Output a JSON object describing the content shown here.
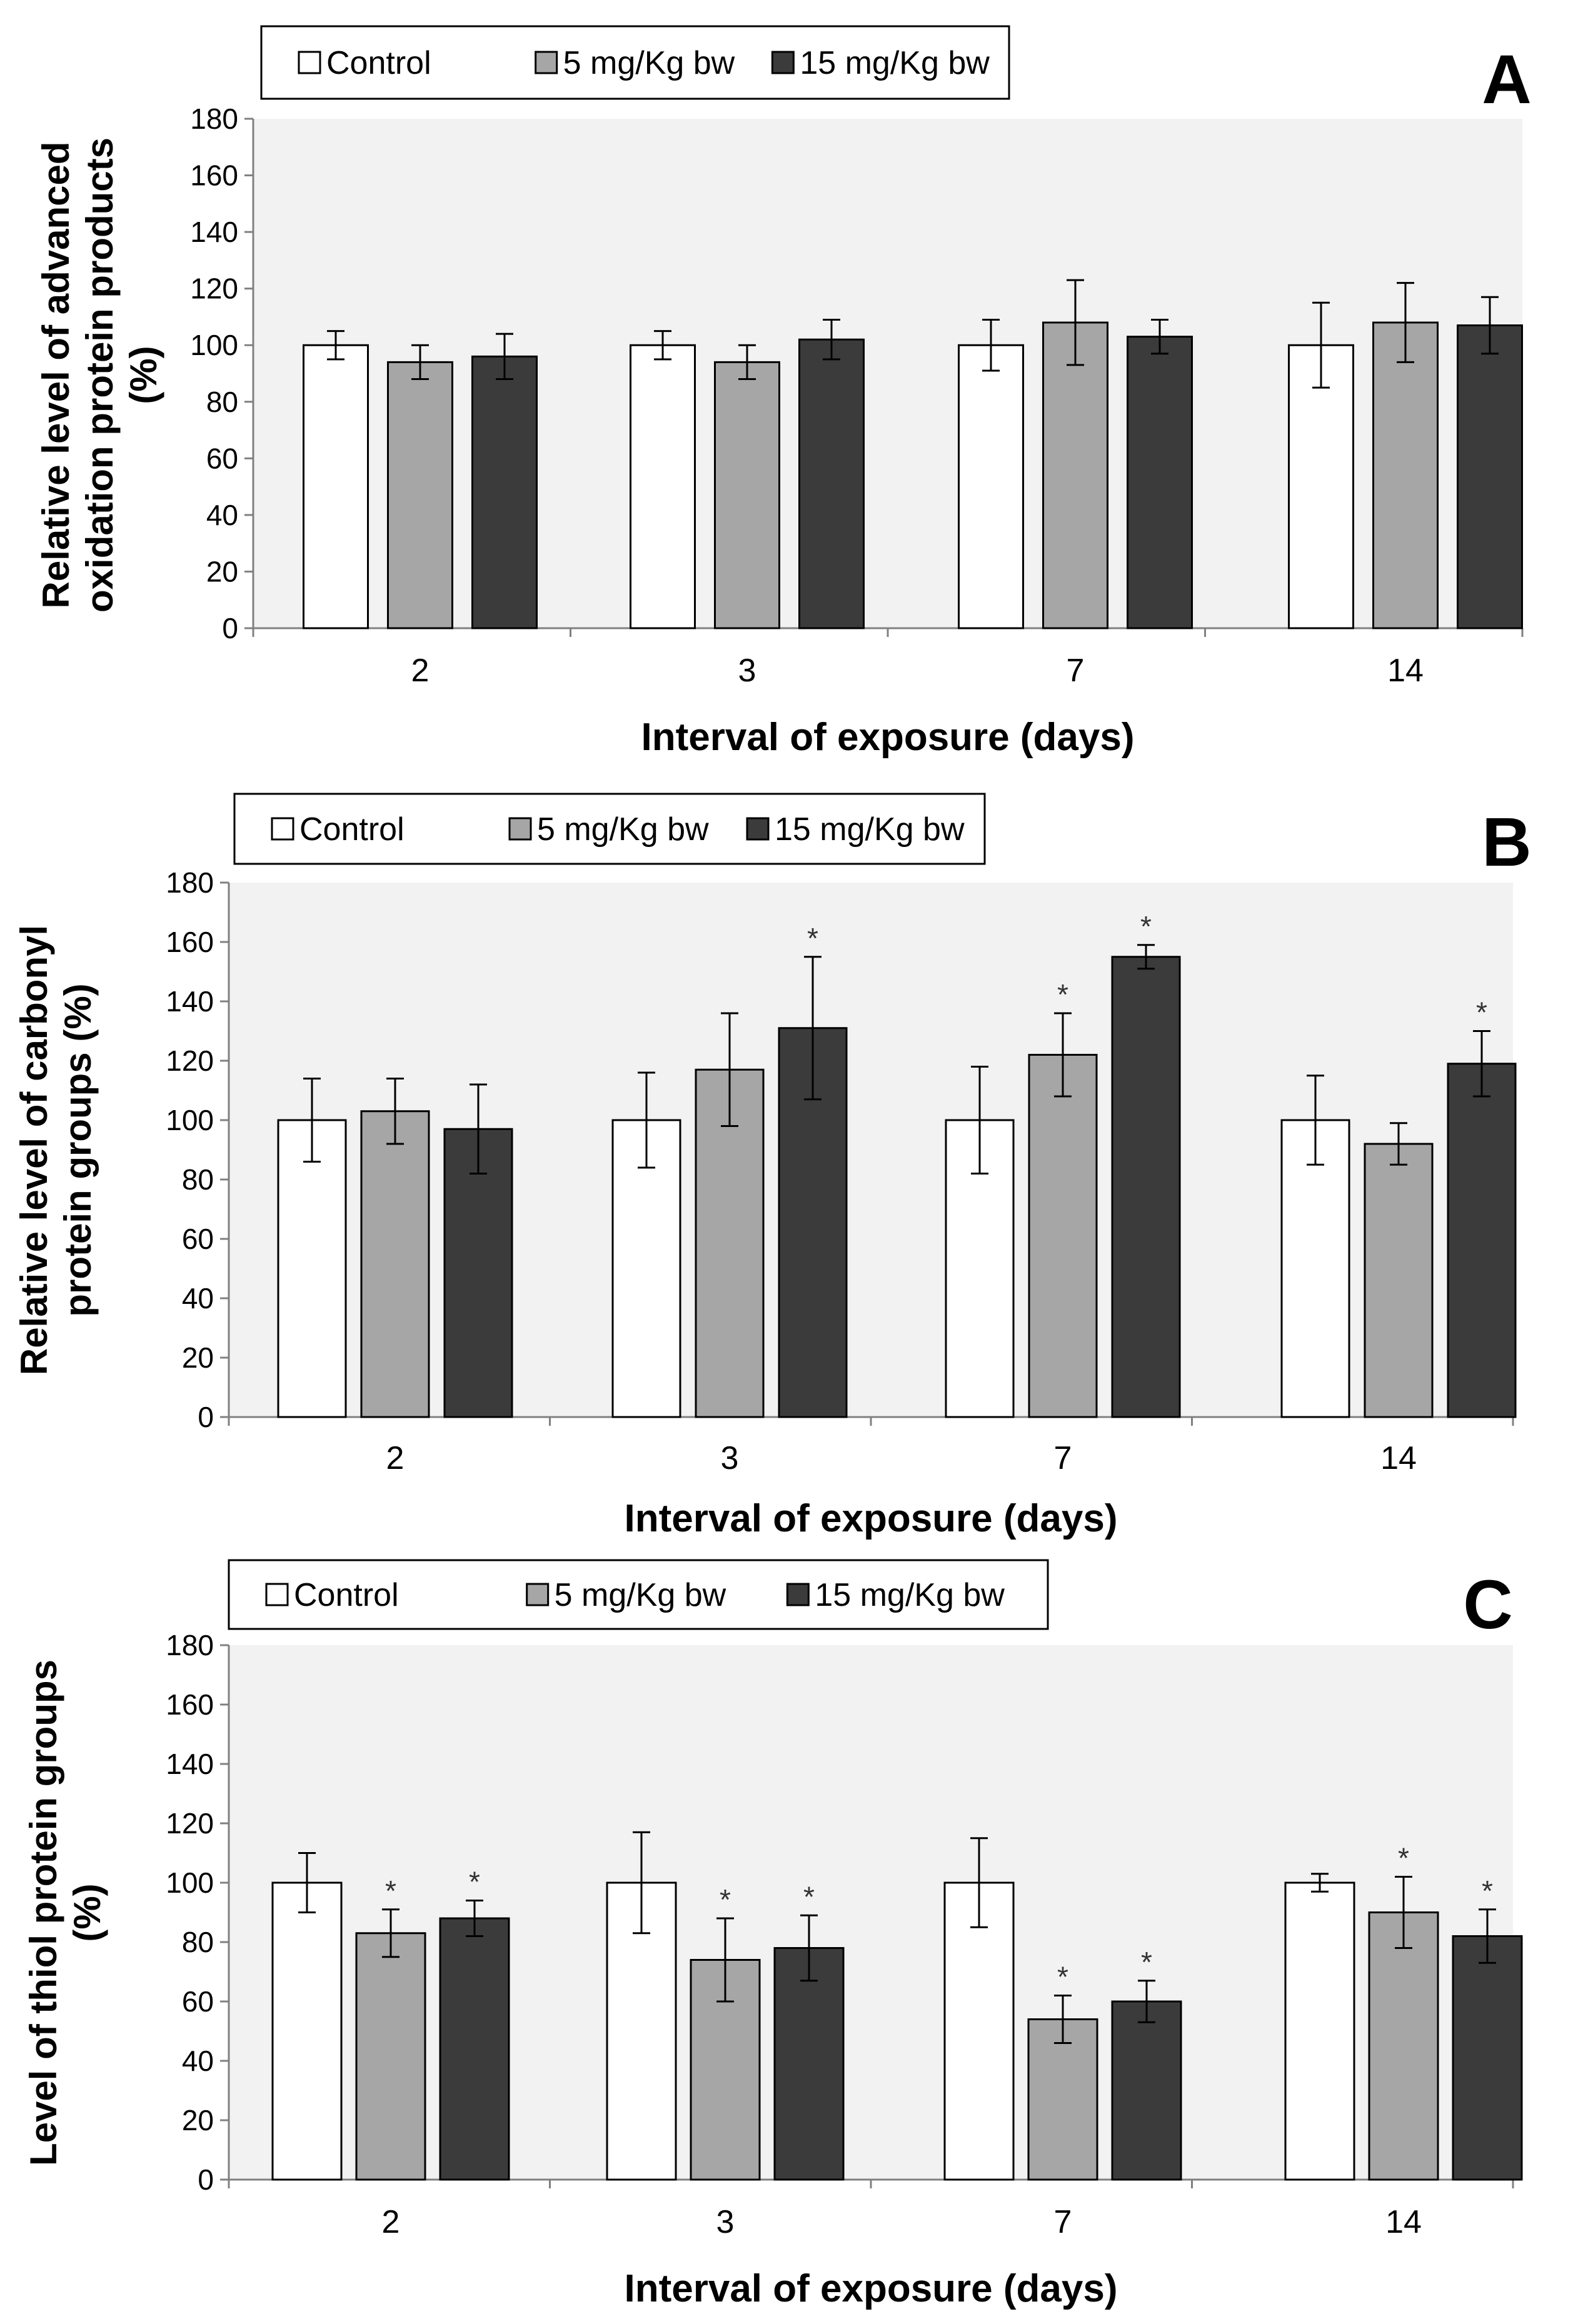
{
  "colors": {
    "Control": "#ffffff",
    "5 mg/Kg bw": "#a6a6a6",
    "15 mg/Kg bw": "#3b3b3b",
    "plot_bg": "#f2f2f2"
  },
  "chart_data": [
    {
      "type": "bar",
      "panel_label": "A",
      "legend": [
        "Control",
        "5 mg/Kg bw",
        "15 mg/Kg bw"
      ],
      "categories": [
        "2",
        "3",
        "7",
        "14"
      ],
      "xlabel": "Interval of exposure (days)",
      "ylabel_lines": [
        "Relative level of advanced",
        "oxidation protein products",
        "(%)"
      ],
      "ylim": [
        0,
        180
      ],
      "yticks": [
        0,
        20,
        40,
        60,
        80,
        100,
        120,
        140,
        160,
        180
      ],
      "series": [
        {
          "name": "Control",
          "values": [
            100,
            100,
            100,
            100
          ],
          "errors": [
            5,
            5,
            9,
            15
          ],
          "significant": [
            false,
            false,
            false,
            false
          ]
        },
        {
          "name": "5 mg/Kg bw",
          "values": [
            94,
            94,
            108,
            108
          ],
          "errors": [
            6,
            6,
            15,
            14
          ],
          "significant": [
            false,
            false,
            false,
            false
          ]
        },
        {
          "name": "15 mg/Kg bw",
          "values": [
            96,
            102,
            103,
            107
          ],
          "errors": [
            8,
            7,
            6,
            10
          ],
          "significant": [
            false,
            false,
            false,
            false
          ]
        }
      ]
    },
    {
      "type": "bar",
      "panel_label": "B",
      "legend": [
        "Control",
        "5 mg/Kg bw",
        "15 mg/Kg bw"
      ],
      "categories": [
        "2",
        "3",
        "7",
        "14"
      ],
      "xlabel": "Interval of exposure (days)",
      "ylabel_lines": [
        "Relative level of carbonyl",
        "protein groups (%)"
      ],
      "ylim": [
        0,
        180
      ],
      "yticks": [
        0,
        20,
        40,
        60,
        80,
        100,
        120,
        140,
        160,
        180
      ],
      "series": [
        {
          "name": "Control",
          "values": [
            100,
            100,
            100,
            100
          ],
          "errors": [
            14,
            16,
            18,
            15
          ],
          "significant": [
            false,
            false,
            false,
            false
          ]
        },
        {
          "name": "5 mg/Kg bw",
          "values": [
            103,
            117,
            122,
            92
          ],
          "errors": [
            11,
            19,
            14,
            7
          ],
          "significant": [
            false,
            false,
            true,
            false
          ]
        },
        {
          "name": "15 mg/Kg bw",
          "values": [
            97,
            131,
            155,
            119
          ],
          "errors": [
            15,
            24,
            4,
            11
          ],
          "significant": [
            false,
            true,
            true,
            true
          ]
        }
      ]
    },
    {
      "type": "bar",
      "panel_label": "C",
      "legend": [
        "Control",
        "5 mg/Kg bw",
        "15 mg/Kg bw"
      ],
      "categories": [
        "2",
        "3",
        "7",
        "14"
      ],
      "xlabel": "Interval of exposure (days)",
      "ylabel_lines": [
        "Level of thiol protein groups",
        "(%)"
      ],
      "ylim": [
        0,
        180
      ],
      "yticks": [
        0,
        20,
        40,
        60,
        80,
        100,
        120,
        140,
        160,
        180
      ],
      "series": [
        {
          "name": "Control",
          "values": [
            100,
            100,
            100,
            100
          ],
          "errors": [
            10,
            17,
            15,
            3
          ],
          "significant": [
            false,
            false,
            false,
            false
          ]
        },
        {
          "name": "5 mg/Kg bw",
          "values": [
            83,
            74,
            54,
            90
          ],
          "errors": [
            8,
            14,
            8,
            12
          ],
          "significant": [
            true,
            true,
            true,
            true
          ]
        },
        {
          "name": "15 mg/Kg bw",
          "values": [
            88,
            78,
            60,
            82
          ],
          "errors": [
            6,
            11,
            7,
            9
          ],
          "significant": [
            true,
            true,
            true,
            true
          ]
        }
      ]
    }
  ]
}
